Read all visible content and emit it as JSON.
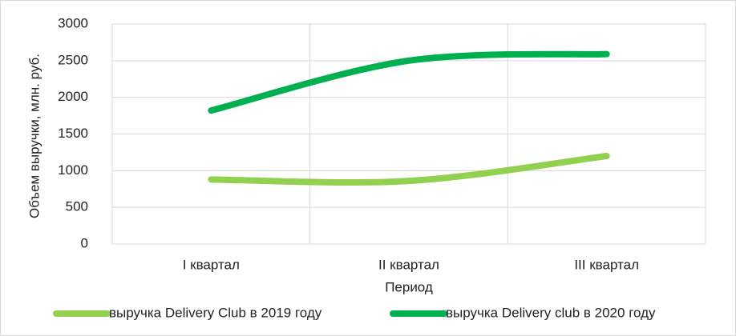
{
  "chart_data": {
    "type": "line",
    "categories": [
      "I квартал",
      "II квартал",
      "III квартал"
    ],
    "series": [
      {
        "name": "выручка Delivery Club в 2019 году",
        "color": "#92d050",
        "values": [
          880,
          860,
          1200
        ]
      },
      {
        "name": "выручка Delivery club в 2020 году",
        "color": "#00b050",
        "values": [
          1820,
          2500,
          2590
        ]
      }
    ],
    "ylim": [
      0,
      3000
    ],
    "yticks": [
      0,
      500,
      1000,
      1500,
      2000,
      2500,
      3000
    ],
    "xlabel": "Период",
    "ylabel": "Объем выручки, млн. руб.",
    "grid": true,
    "smooth": true,
    "legend": "bottom"
  }
}
